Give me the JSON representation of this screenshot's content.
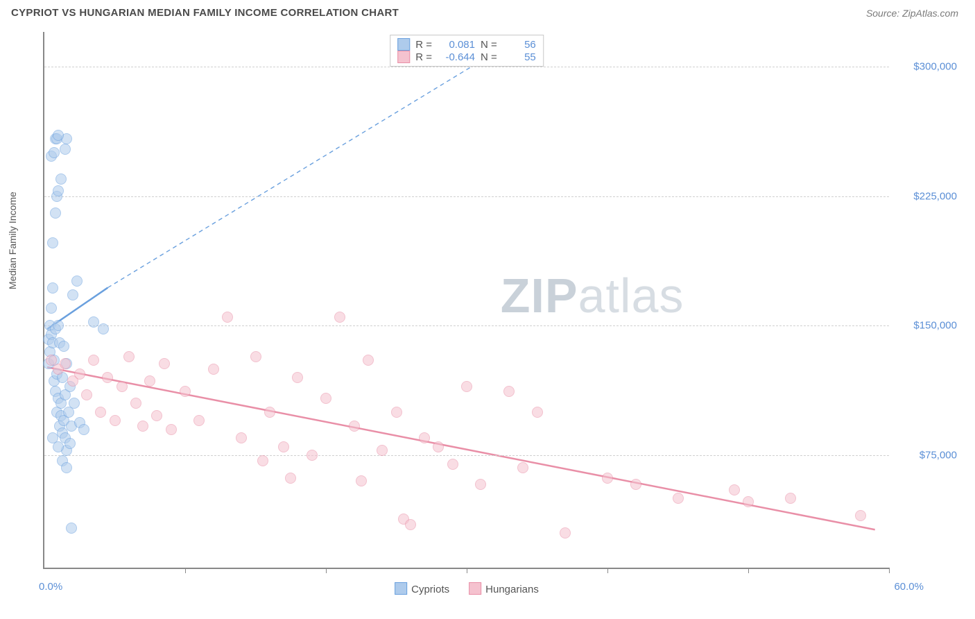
{
  "header": {
    "title": "CYPRIOT VS HUNGARIAN MEDIAN FAMILY INCOME CORRELATION CHART",
    "source": "Source: ZipAtlas.com"
  },
  "watermark": {
    "zip": "ZIP",
    "atlas": "atlas"
  },
  "chart": {
    "type": "scatter",
    "ylabel": "Median Family Income",
    "background_color": "#ffffff",
    "grid_color": "#d0d0d0",
    "axis_color": "#888888",
    "tick_label_color": "#5b8fd6",
    "xlim": [
      0,
      60
    ],
    "ylim": [
      10000,
      320000
    ],
    "x_ticks": [
      0,
      10,
      20,
      30,
      40,
      50,
      60
    ],
    "x_tick_labels_shown": {
      "left": "0.0%",
      "right": "60.0%"
    },
    "y_gridlines": [
      75000,
      150000,
      225000,
      300000
    ],
    "y_tick_labels": [
      "$75,000",
      "$150,000",
      "$225,000",
      "$300,000"
    ],
    "marker_radius": 8,
    "marker_stroke_width": 1.5,
    "series": [
      {
        "name": "Cypriots",
        "fill": "#aecbec",
        "stroke": "#6aa0de",
        "fill_opacity": 0.55,
        "r_value": "0.081",
        "n_value": "56",
        "trend": {
          "solid": {
            "x1": 0.2,
            "y1": 148000,
            "x2": 4.5,
            "y2": 172000,
            "width": 2.5
          },
          "dashed": {
            "x1": 4.5,
            "y1": 172000,
            "x2": 34,
            "y2": 318000,
            "dash": "6,5",
            "width": 1.4
          }
        },
        "points": [
          [
            0.3,
            128000
          ],
          [
            0.3,
            142000
          ],
          [
            0.4,
            150000
          ],
          [
            0.4,
            135000
          ],
          [
            0.5,
            145000
          ],
          [
            0.5,
            160000
          ],
          [
            0.6,
            172000
          ],
          [
            0.6,
            140000
          ],
          [
            0.7,
            118000
          ],
          [
            0.7,
            130000
          ],
          [
            0.8,
            148000
          ],
          [
            0.8,
            112000
          ],
          [
            0.9,
            100000
          ],
          [
            0.9,
            122000
          ],
          [
            1.0,
            150000
          ],
          [
            1.0,
            108000
          ],
          [
            1.1,
            92000
          ],
          [
            1.1,
            140000
          ],
          [
            1.2,
            105000
          ],
          [
            1.2,
            98000
          ],
          [
            1.3,
            120000
          ],
          [
            1.3,
            88000
          ],
          [
            1.4,
            95000
          ],
          [
            1.5,
            110000
          ],
          [
            1.5,
            85000
          ],
          [
            1.6,
            78000
          ],
          [
            1.7,
            100000
          ],
          [
            1.8,
            82000
          ],
          [
            1.9,
            92000
          ],
          [
            2.0,
            168000
          ],
          [
            2.1,
            105000
          ],
          [
            2.3,
            176000
          ],
          [
            2.5,
            94000
          ],
          [
            0.6,
            198000
          ],
          [
            0.8,
            215000
          ],
          [
            0.9,
            225000
          ],
          [
            1.0,
            228000
          ],
          [
            1.2,
            235000
          ],
          [
            0.5,
            248000
          ],
          [
            0.7,
            250000
          ],
          [
            0.8,
            258000
          ],
          [
            0.9,
            258000
          ],
          [
            1.5,
            252000
          ],
          [
            1.6,
            258000
          ],
          [
            1.0,
            260000
          ],
          [
            3.5,
            152000
          ],
          [
            4.2,
            148000
          ],
          [
            1.4,
            138000
          ],
          [
            1.6,
            128000
          ],
          [
            1.8,
            115000
          ],
          [
            1.3,
            72000
          ],
          [
            1.6,
            68000
          ],
          [
            1.0,
            80000
          ],
          [
            2.8,
            90000
          ],
          [
            1.9,
            33000
          ],
          [
            0.6,
            85000
          ]
        ]
      },
      {
        "name": "Hungarians",
        "fill": "#f5c2cf",
        "stroke": "#e98fa7",
        "fill_opacity": 0.55,
        "r_value": "-0.644",
        "n_value": "55",
        "trend": {
          "solid": {
            "x1": 0.2,
            "y1": 126000,
            "x2": 59,
            "y2": 32000,
            "width": 2.5
          }
        },
        "points": [
          [
            0.5,
            130000
          ],
          [
            1.0,
            125000
          ],
          [
            1.5,
            128000
          ],
          [
            2.0,
            118000
          ],
          [
            2.5,
            122000
          ],
          [
            3.0,
            110000
          ],
          [
            3.5,
            130000
          ],
          [
            4.0,
            100000
          ],
          [
            4.5,
            120000
          ],
          [
            5.0,
            95000
          ],
          [
            5.5,
            115000
          ],
          [
            6.0,
            132000
          ],
          [
            6.5,
            105000
          ],
          [
            7.0,
            92000
          ],
          [
            7.5,
            118000
          ],
          [
            8.0,
            98000
          ],
          [
            8.5,
            128000
          ],
          [
            9.0,
            90000
          ],
          [
            10.0,
            112000
          ],
          [
            11.0,
            95000
          ],
          [
            12.0,
            125000
          ],
          [
            13.0,
            155000
          ],
          [
            14.0,
            85000
          ],
          [
            15.0,
            132000
          ],
          [
            15.5,
            72000
          ],
          [
            16.0,
            100000
          ],
          [
            17.0,
            80000
          ],
          [
            17.5,
            62000
          ],
          [
            18.0,
            120000
          ],
          [
            19.0,
            75000
          ],
          [
            20.0,
            108000
          ],
          [
            21.0,
            155000
          ],
          [
            22.0,
            92000
          ],
          [
            22.5,
            60000
          ],
          [
            23.0,
            130000
          ],
          [
            24.0,
            78000
          ],
          [
            25.0,
            100000
          ],
          [
            25.5,
            38000
          ],
          [
            26.0,
            35000
          ],
          [
            27.0,
            85000
          ],
          [
            28.0,
            80000
          ],
          [
            29.0,
            70000
          ],
          [
            30.0,
            115000
          ],
          [
            31.0,
            58000
          ],
          [
            33.0,
            112000
          ],
          [
            35.0,
            100000
          ],
          [
            37.0,
            30000
          ],
          [
            40.0,
            62000
          ],
          [
            42.0,
            58000
          ],
          [
            45.0,
            50000
          ],
          [
            49.0,
            55000
          ],
          [
            50.0,
            48000
          ],
          [
            53.0,
            50000
          ],
          [
            58.0,
            40000
          ],
          [
            34.0,
            68000
          ]
        ]
      }
    ],
    "legend_bottom": [
      {
        "label": "Cypriots",
        "fill": "#aecbec",
        "stroke": "#6aa0de"
      },
      {
        "label": "Hungarians",
        "fill": "#f5c2cf",
        "stroke": "#e98fa7"
      }
    ]
  }
}
